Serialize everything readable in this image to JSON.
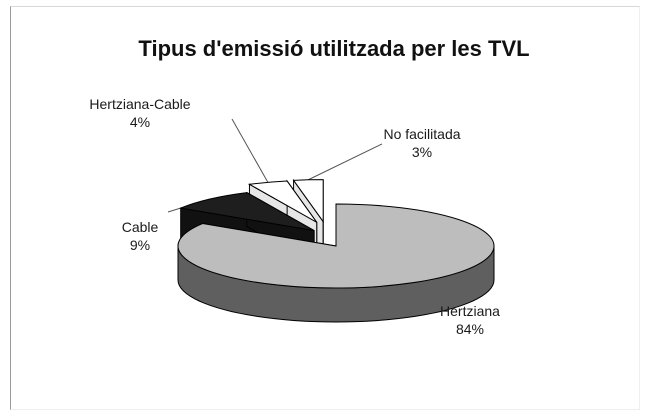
{
  "chart_data": {
    "type": "pie",
    "style": "3d-exploded",
    "title": "Tipus d'emissió utilitzada per les TVL",
    "slices": [
      {
        "name": "Hertziana",
        "value": 84,
        "label": "84%",
        "color": "#bdbdbd"
      },
      {
        "name": "Cable",
        "value": 9,
        "label": "9%",
        "color": "#1e1e1e"
      },
      {
        "name": "Hertziana-Cable",
        "value": 4,
        "label": "4%",
        "color": "#ffffff"
      },
      {
        "name": "No facilitada",
        "value": 3,
        "label": "3%",
        "color": "#ffffff"
      }
    ]
  }
}
